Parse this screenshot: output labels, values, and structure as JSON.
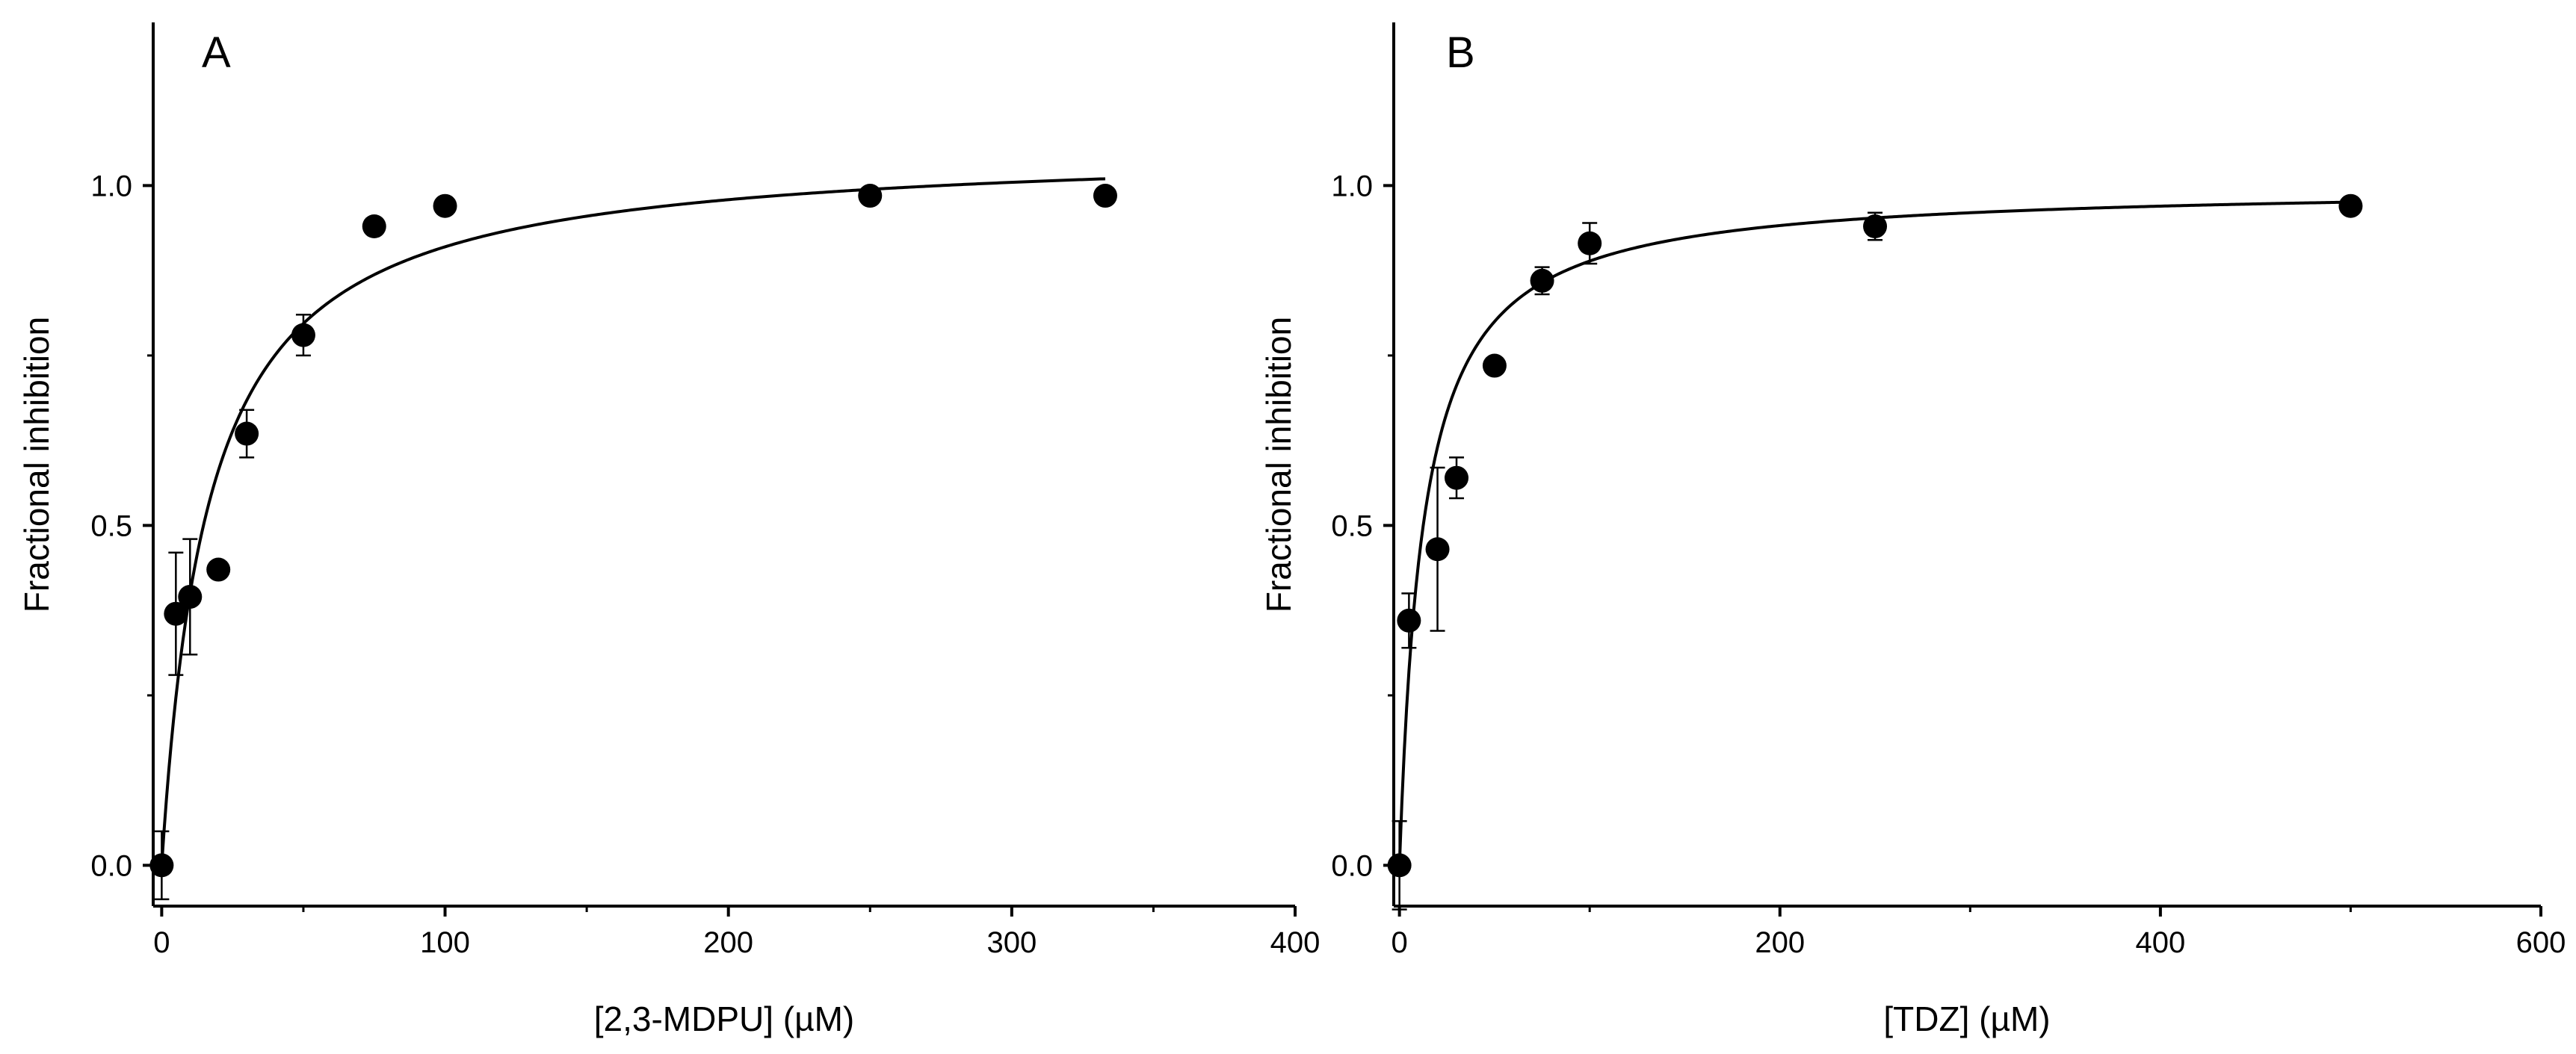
{
  "chart_data": [
    {
      "type": "scatter",
      "panel": "A",
      "xlabel": "[2,3-MDPU] (µM)",
      "ylabel": "Fractional inhibition",
      "xlim": [
        -3,
        400
      ],
      "ylim": [
        -0.06,
        1.24
      ],
      "xticks": [
        0,
        100,
        200,
        300,
        400
      ],
      "xtick_labels": [
        "0",
        "100",
        "200",
        "300",
        "400"
      ],
      "yticks": [
        0.0,
        0.5,
        1.0
      ],
      "ytick_labels": [
        "0.0",
        "0.5",
        "1.0"
      ],
      "x_minor_step": 50,
      "y_minor_step": 0.25,
      "series": [
        {
          "name": "data",
          "x": [
            0,
            5,
            10,
            20,
            30,
            50,
            75,
            100,
            250,
            333
          ],
          "y": [
            0.0,
            0.37,
            0.395,
            0.435,
            0.635,
            0.78,
            0.94,
            0.97,
            0.985,
            0.985
          ],
          "yerr": [
            0.05,
            0.09,
            0.085,
            0.0,
            0.035,
            0.03,
            0.0,
            0.0,
            0.0,
            0.0
          ]
        }
      ],
      "fit": {
        "type": "hyperbolic",
        "ymax": 1.06,
        "K": 16.5,
        "x_end": 333
      }
    },
    {
      "type": "scatter",
      "panel": "B",
      "xlabel": "[TDZ] (µM)",
      "ylabel": "Fractional inhibition",
      "xlim": [
        -3,
        600
      ],
      "ylim": [
        -0.06,
        1.24
      ],
      "xticks": [
        0,
        200,
        400,
        600
      ],
      "xtick_labels": [
        "0",
        "200",
        "400",
        "600"
      ],
      "yticks": [
        0.0,
        0.5,
        1.0
      ],
      "ytick_labels": [
        "0.0",
        "0.5",
        "1.0"
      ],
      "x_minor_step": 100,
      "y_minor_step": 0.25,
      "series": [
        {
          "name": "data",
          "x": [
            0,
            5,
            20,
            30,
            50,
            75,
            100,
            250,
            500
          ],
          "y": [
            0.0,
            0.36,
            0.465,
            0.57,
            0.735,
            0.86,
            0.915,
            0.94,
            0.97
          ],
          "yerr": [
            0.065,
            0.04,
            0.12,
            0.03,
            0.0,
            0.02,
            0.03,
            0.02,
            0.0
          ]
        }
      ],
      "fit": {
        "type": "hyperbolic",
        "ymax": 1.0,
        "K": 12.5,
        "x_end": 500
      }
    }
  ]
}
